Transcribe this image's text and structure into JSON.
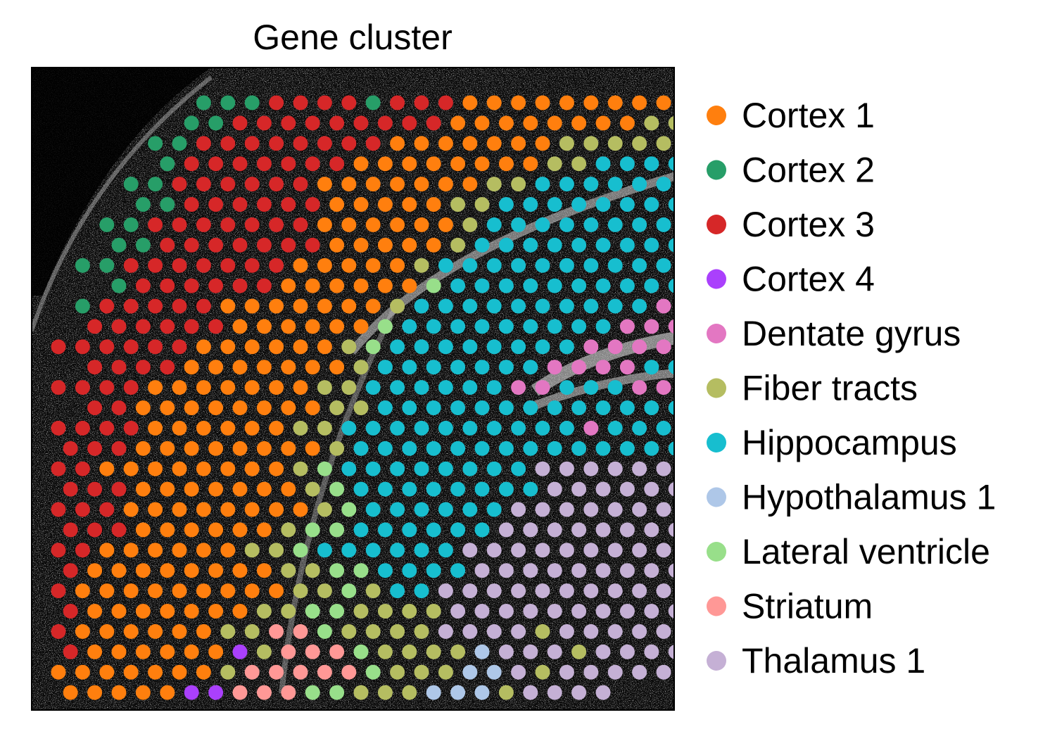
{
  "chart_data": {
    "type": "scatter",
    "title": "Gene cluster",
    "xlabel": "",
    "ylabel": "",
    "background": "tissue-image-dark",
    "legend_placement": "right",
    "series": [
      {
        "name": "Cortex 1",
        "color": "#ff7f0e"
      },
      {
        "name": "Cortex 2",
        "color": "#279e68"
      },
      {
        "name": "Cortex 3",
        "color": "#d62728"
      },
      {
        "name": "Cortex 4",
        "color": "#aa40fc"
      },
      {
        "name": "Dentate gyrus",
        "color": "#e377c2"
      },
      {
        "name": "Fiber tracts",
        "color": "#b5bd61"
      },
      {
        "name": "Hippocampus",
        "color": "#17becf"
      },
      {
        "name": "Hypothalamus 1",
        "color": "#aec7e8"
      },
      {
        "name": "Lateral ventricle",
        "color": "#98df8a"
      },
      {
        "name": "Striatum",
        "color": "#ff9896"
      },
      {
        "name": "Thalamus 1",
        "color": "#c5b0d5"
      }
    ],
    "spot_grid": {
      "legend_key": {
        "1": "Cortex 1",
        "2": "Cortex 2",
        "3": "Cortex 3",
        "4": "Cortex 4",
        "D": "Dentate gyrus",
        "F": "Fiber tracts",
        "H": "Hippocampus",
        "Y": "Hypothalamus 1",
        "L": "Lateral ventricle",
        "S": "Striatum",
        "T": "Thalamus 1"
      },
      "rows": [
        "......22233332333111111111",
        ".....2233333333311111111FF",
        "....22333333331111111FFFFF",
        "....2333333311111111FFHHHH",
        "...223333331111111FFHHHHHH",
        "...2233333311111FFHHHHHHHH",
        "..223333333111111FHHHHHHHH",
        "..22333333311111FHHHHHHHHH",
        ".22333333311111FHHHHHHHHHH",
        "..2333333111111LHHHHHHHHHH",
        ".2333331111111FHHHHHHHHHHD",
        ".333333111111LHHHHHHHHHDDD",
        "333333111111FLHHHHHHHHDDDD",
        ".33331111111FHHHHHHHDDDDHH",
        "33331111111FFHHHHHHDDHHHDD",
        ".3311111111FFHHHHHHHHHHHHH",
        "3333111111FFHHHHHHHHHHDHHH",
        "33311111111FHHHHHHHHHHHHHH",
        "3311111111FLHHHHHHHHTTTTTT",
        "3331111111FLHHHHHHHHTTTTTT",
        "33311111111FLHHHHHHTTTTTTT",
        "333111111FLLHHHHHHTTTTTTTT",
        "33111111FFLHHHHHHTTTTTTTTT",
        "311111111FFLLHHHHTTTTTTTTT",
        "3111111111FFLFHHTTTTTTTTTT",
        "31111111FFLLFFFFTTTTTTTTTT",
        "3111111FFSSLFFFFTTTTFTTTTT",
        "31111114FSSSLFFFFYTTTFTTTT",
        "1111111FSSSSSLFFFYYTFTTTTT",
        "1111144SSSLLFFFYYYFTTTT..."
      ]
    }
  },
  "legend_marker_char": "●"
}
